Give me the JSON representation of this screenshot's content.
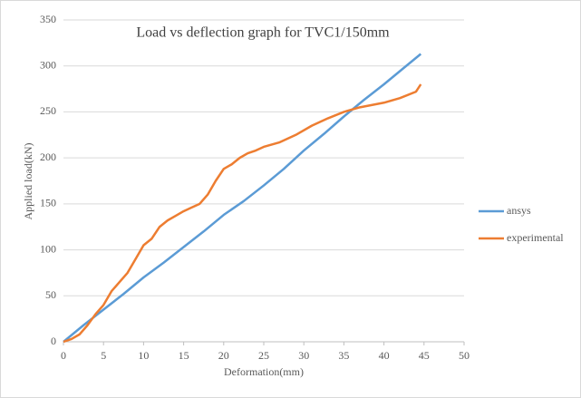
{
  "chart_data": {
    "type": "line",
    "title": "Load  vs deflection graph for TVC1/150mm",
    "x_label": "Deformation(mm)",
    "y_label": "Applied load(kN)",
    "xlim": [
      0,
      50
    ],
    "xticks": [
      0,
      5,
      10,
      15,
      20,
      25,
      30,
      35,
      40,
      45,
      50
    ],
    "ylim": [
      0,
      350
    ],
    "yticks": [
      0,
      50,
      100,
      150,
      200,
      250,
      300,
      350
    ],
    "grid": true,
    "legend": "right",
    "series": [
      {
        "name": "ansys",
        "color": "#5b9bd5",
        "x": [
          0,
          2.5,
          5,
          7.5,
          10,
          12.5,
          15,
          17.5,
          20,
          22.5,
          25,
          27.5,
          30,
          32.5,
          35,
          37.5,
          40,
          42.5,
          44.6
        ],
        "values": [
          0,
          18,
          35,
          52,
          70,
          86,
          103,
          120,
          138,
          153,
          170,
          188,
          208,
          226,
          245,
          263,
          280,
          298,
          313
        ]
      },
      {
        "name": "experimental",
        "color": "#ed7d31",
        "x": [
          0,
          1,
          2,
          3,
          4,
          5,
          6,
          7,
          8,
          9,
          10,
          11,
          12,
          13,
          14,
          15,
          16,
          17,
          18,
          19,
          20,
          21,
          22,
          23,
          24,
          25,
          27,
          29,
          31,
          33,
          35,
          37,
          40,
          42,
          44,
          44.6
        ],
        "values": [
          0,
          3,
          8,
          18,
          30,
          40,
          55,
          65,
          75,
          90,
          105,
          112,
          125,
          132,
          137,
          142,
          146,
          150,
          160,
          175,
          188,
          193,
          200,
          205,
          208,
          212,
          217,
          225,
          235,
          243,
          250,
          255,
          260,
          265,
          272,
          280
        ]
      }
    ]
  }
}
